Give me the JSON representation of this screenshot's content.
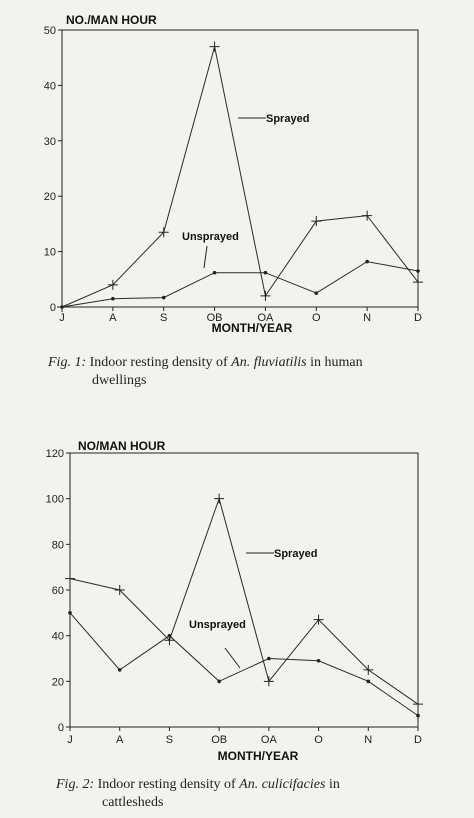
{
  "chart_data": [
    {
      "type": "line",
      "ylabel": "NO./MAN HOUR",
      "xlabel": "MONTH/YEAR",
      "categories": [
        "J",
        "A",
        "S",
        "OB",
        "OA",
        "O",
        "N",
        "D"
      ],
      "yticks": [
        0,
        10,
        20,
        30,
        40,
        50
      ],
      "ylim": [
        0,
        50
      ],
      "grid": false,
      "series": [
        {
          "name": "Sprayed",
          "marker": "plus",
          "values": [
            0,
            4,
            13.5,
            47,
            2,
            15.5,
            16.5,
            4.5
          ]
        },
        {
          "name": "Unsprayed",
          "marker": "dot",
          "values": [
            0,
            1.5,
            1.7,
            6.2,
            6.2,
            2.5,
            8.2,
            6.5
          ]
        }
      ],
      "caption": {
        "label": "Fig. 1:",
        "text_before": " Indoor resting density of ",
        "species": "An. fluviatilis",
        "text_after": " in human",
        "line2": "dwellings"
      }
    },
    {
      "type": "line",
      "ylabel": "NO/MAN HOUR",
      "xlabel": "MONTH/YEAR",
      "categories": [
        "J",
        "A",
        "S",
        "OB",
        "OA",
        "O",
        "N",
        "D"
      ],
      "yticks": [
        0,
        20,
        40,
        60,
        80,
        100,
        120
      ],
      "ylim": [
        0,
        120
      ],
      "grid": false,
      "series": [
        {
          "name": "Sprayed",
          "marker": "plus",
          "values": [
            65,
            60,
            38,
            100,
            20,
            47,
            25,
            10
          ]
        },
        {
          "name": "Unsprayed",
          "marker": "dot",
          "values": [
            50,
            25,
            40,
            20,
            30,
            29,
            20,
            5
          ]
        }
      ],
      "caption": {
        "label": "Fig. 2:",
        "text_before": " Indoor resting density of ",
        "species": "An. culicifacies",
        "text_after": " in",
        "line2": "cattlesheds"
      }
    }
  ]
}
